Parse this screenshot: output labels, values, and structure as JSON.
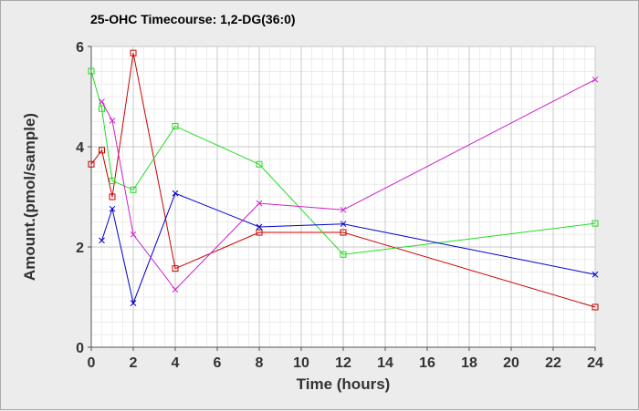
{
  "chart_data": {
    "type": "line",
    "title": "25-OHC Timecourse: 1,2-DG(36:0)",
    "xlabel": "Time (hours)",
    "ylabel": "Amount.(pmol/sample)",
    "xlim": [
      0,
      24
    ],
    "ylim": [
      0,
      6
    ],
    "xticks": [
      0,
      2,
      4,
      6,
      8,
      10,
      12,
      14,
      16,
      18,
      20,
      22,
      24
    ],
    "yticks": [
      0,
      2,
      4,
      6
    ],
    "grid": true,
    "series": [
      {
        "color": "#cc0000",
        "marker": "square",
        "points": [
          [
            0,
            3.65
          ],
          [
            0.5,
            3.93
          ],
          [
            1,
            3.0
          ],
          [
            2,
            5.87
          ],
          [
            4,
            1.57
          ],
          [
            8,
            2.29
          ],
          [
            12,
            2.29
          ],
          [
            24,
            0.8
          ]
        ]
      },
      {
        "color": "#22dd22",
        "marker": "square",
        "points": [
          [
            0,
            5.51
          ],
          [
            0.5,
            4.76
          ],
          [
            1,
            3.32
          ],
          [
            2,
            3.14
          ],
          [
            4,
            4.41
          ],
          [
            8,
            3.65
          ],
          [
            12,
            1.85
          ],
          [
            24,
            2.47
          ]
        ]
      },
      {
        "color": "#0000cc",
        "marker": "x",
        "points": [
          [
            0.5,
            2.13
          ],
          [
            1,
            2.76
          ],
          [
            2,
            0.88
          ],
          [
            4,
            3.07
          ],
          [
            8,
            2.4
          ],
          [
            12,
            2.46
          ],
          [
            24,
            1.45
          ]
        ]
      },
      {
        "color": "#cc22cc",
        "marker": "x",
        "points": [
          [
            0.5,
            4.9
          ],
          [
            1,
            4.52
          ],
          [
            2,
            2.25
          ],
          [
            4,
            1.15
          ],
          [
            8,
            2.87
          ],
          [
            12,
            2.74
          ],
          [
            24,
            5.34
          ]
        ]
      }
    ]
  }
}
